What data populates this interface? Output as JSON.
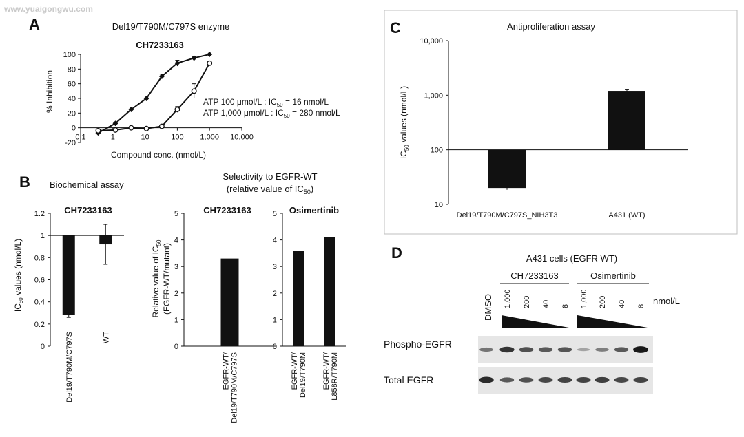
{
  "watermark": "www.yuaigongwu.com",
  "colors": {
    "ink": "#111111",
    "panel_border": "#bfbfbf",
    "background": "#ffffff"
  },
  "chart_data": [
    {
      "panel": "A",
      "type": "line",
      "title": "Del19/T790M/C797S enzyme",
      "subtitle": "CH7233163",
      "xlabel": "Compound conc. (nmol/L)",
      "ylabel": "% Inhibition",
      "x_scale": "log",
      "xlim": [
        0.1,
        10000
      ],
      "ylim": [
        -20,
        100
      ],
      "xticks": [
        "0.1",
        "1",
        "10",
        "100",
        "1,000",
        "10,000"
      ],
      "yticks": [
        "-20",
        "0",
        "20",
        "40",
        "60",
        "80",
        "100"
      ],
      "series": [
        {
          "marker": "filled-diamond",
          "x": [
            0.35,
            1.2,
            3.7,
            11,
            33,
            100,
            330,
            1000
          ],
          "y": [
            -7,
            6,
            25,
            40,
            70,
            88,
            95,
            100
          ],
          "err": [
            1,
            1,
            1,
            1,
            3,
            4,
            2,
            1
          ]
        },
        {
          "marker": "open-circle",
          "x": [
            0.35,
            1.2,
            3.7,
            11,
            33,
            100,
            330,
            1000
          ],
          "y": [
            -4,
            -3,
            0,
            -1,
            2,
            25,
            50,
            88
          ],
          "err": [
            1,
            1,
            1,
            1,
            1,
            4,
            10,
            2
          ]
        }
      ],
      "annotations": [
        {
          "text": "ATP 100 μmol/L   : IC",
          "sub": "50",
          "tail": " = 16 nmol/L"
        },
        {
          "text": "ATP 1,000 μmol/L : IC",
          "sub": "50",
          "tail": " = 280 nmol/L"
        }
      ]
    },
    {
      "panel": "B",
      "type": "bar",
      "title": "Biochemical assay",
      "subtitle": "CH7233163",
      "ylabel_main": "IC",
      "ylabel_sub": "50",
      "ylabel_tail": " values (nmol/L)",
      "baseline": 1,
      "ylim": [
        0,
        1.2
      ],
      "yticks": [
        "0",
        "0.2",
        "0.4",
        "0.6",
        "0.8",
        "1",
        "1.2"
      ],
      "categories": [
        "Del19/T790M/C797S",
        "WT"
      ],
      "values": [
        0.28,
        0.92
      ],
      "err": [
        0.02,
        0.18
      ]
    },
    {
      "panel": "B",
      "type": "bar",
      "header_line1": "Selectivity to EGFR-WT",
      "header_line2": "(relative value of IC",
      "header_sub": "50",
      "header_tail": ")",
      "subtitle": "CH7233163",
      "ylabel_line1": "Relative value of IC",
      "ylabel_sub": "50",
      "ylabel_line2": "(EGFR-WT/mutant)",
      "ylim": [
        0,
        5
      ],
      "yticks": [
        "0",
        "1",
        "2",
        "3",
        "4",
        "5"
      ],
      "categories": [
        [
          "EGFR-WT/",
          "Del19/T790M/C797S"
        ]
      ],
      "values": [
        3.3
      ]
    },
    {
      "panel": "B",
      "type": "bar",
      "subtitle": "Osimertinib",
      "ylim": [
        0,
        5
      ],
      "yticks": [
        "0",
        "1",
        "2",
        "3",
        "4",
        "5"
      ],
      "categories": [
        [
          "EGFR-WT/",
          "Del19/T790M"
        ],
        [
          "EGFR-WT/",
          "L858R/T790M"
        ]
      ],
      "values": [
        3.6,
        4.1
      ]
    },
    {
      "panel": "C",
      "type": "bar",
      "title": "Antiproliferation assay",
      "ylabel_main": "IC",
      "ylabel_sub": "50",
      "ylabel_tail": " values (nmol/L)",
      "y_scale": "log",
      "baseline": 100,
      "ylim": [
        10,
        10000
      ],
      "yticks": [
        "10",
        "100",
        "1,000",
        "10,000"
      ],
      "categories": [
        "Del19/T790M/C797S_NIH3T3",
        "A431 (WT)"
      ],
      "values": [
        20,
        1200
      ],
      "err": [
        1.5,
        60
      ]
    }
  ],
  "panel_D": {
    "letter": "D",
    "header": "A431 cells (EGFR WT)",
    "groups": [
      "CH7233163",
      "Osimertinib"
    ],
    "control": "DMSO",
    "concentrations": [
      "1,000",
      "200",
      "40",
      "8"
    ],
    "unit": "nmol/L",
    "rows": [
      {
        "label": "Phospho-EGFR",
        "band_intensity": [
          0.45,
          0.8,
          0.65,
          0.6,
          0.62,
          0.2,
          0.4,
          0.6,
          0.95
        ]
      },
      {
        "label": "Total EGFR",
        "band_intensity": [
          0.85,
          0.6,
          0.65,
          0.7,
          0.72,
          0.72,
          0.74,
          0.7,
          0.72
        ]
      }
    ]
  }
}
